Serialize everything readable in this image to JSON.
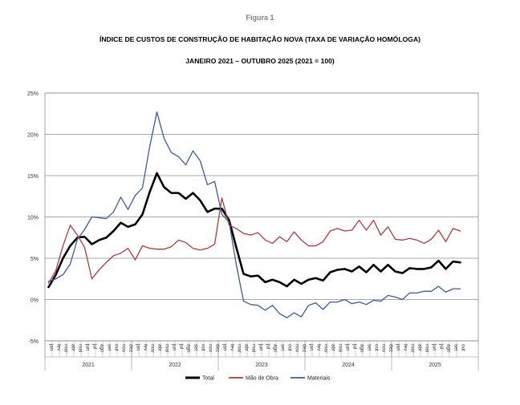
{
  "figure_label": "Figura 1",
  "chart_data": {
    "type": "line",
    "title": "ÍNDICE DE CUSTOS DE CONSTRUÇÃO DE HABITAÇÃO NOVA (TAXA DE VARIAÇÃO HOMÓLOGA)",
    "subtitle": "JANEIRO 2021 – OUTUBRO 2025 (2021 = 100)",
    "xlabel": "",
    "ylabel": "",
    "ylim": [
      -5,
      25
    ],
    "y_ticks": [
      "-5%",
      "0%",
      "5%",
      "10%",
      "15%",
      "20%",
      "25%"
    ],
    "grid": true,
    "legend_position": "bottom",
    "months": [
      "jan",
      "fev",
      "mar",
      "abr",
      "mai",
      "jun",
      "jul",
      "ago",
      "set",
      "out",
      "nov",
      "dez"
    ],
    "years": [
      "2021",
      "2022",
      "2023",
      "2024",
      "2025"
    ],
    "series": [
      {
        "name": "Total",
        "color": "#000000",
        "width": 2.6,
        "values": [
          1.5,
          3.0,
          5.0,
          6.5,
          7.5,
          7.6,
          6.7,
          7.2,
          7.5,
          8.3,
          9.3,
          8.8,
          9.1,
          10.3,
          13.0,
          15.3,
          13.6,
          12.9,
          12.9,
          12.2,
          12.9,
          12.0,
          10.6,
          11.0,
          11.0,
          9.6,
          6.3,
          3.1,
          2.8,
          2.9,
          2.1,
          2.4,
          2.1,
          1.6,
          2.4,
          1.9,
          2.4,
          2.6,
          2.3,
          3.3,
          3.6,
          3.7,
          3.4,
          4.0,
          3.3,
          4.2,
          3.4,
          4.2,
          3.4,
          3.2,
          3.8,
          3.7,
          3.7,
          3.9,
          4.7,
          3.7,
          4.6,
          4.5
        ]
      },
      {
        "name": "Mão de Obra",
        "color": "#b03a3a",
        "width": 1.3,
        "values": [
          2.0,
          3.5,
          6.5,
          9.0,
          7.8,
          6.3,
          2.5,
          3.6,
          4.5,
          5.3,
          5.6,
          6.2,
          4.8,
          6.5,
          6.2,
          6.1,
          6.1,
          6.4,
          7.2,
          6.9,
          6.2,
          6.0,
          6.2,
          6.7,
          12.3,
          9.0,
          8.6,
          8.0,
          7.8,
          8.1,
          7.2,
          6.8,
          7.6,
          7.0,
          8.2,
          7.2,
          6.5,
          6.5,
          7.0,
          8.3,
          8.6,
          8.3,
          8.4,
          9.6,
          8.4,
          9.6,
          7.8,
          8.8,
          7.3,
          7.2,
          7.4,
          7.2,
          6.8,
          7.3,
          8.4,
          7.0,
          8.6,
          8.3
        ]
      },
      {
        "name": "Materiais",
        "color": "#3b5b9a",
        "width": 1.3,
        "values": [
          2.2,
          2.5,
          3.0,
          4.3,
          7.3,
          8.5,
          10.0,
          9.9,
          9.8,
          10.6,
          12.4,
          10.9,
          12.6,
          13.5,
          18.5,
          22.7,
          19.5,
          17.8,
          17.3,
          16.3,
          18.0,
          16.8,
          13.9,
          14.3,
          10.3,
          9.4,
          4.2,
          -0.2,
          -0.6,
          -0.7,
          -1.3,
          -0.7,
          -1.7,
          -2.2,
          -1.6,
          -2.1,
          -0.7,
          -0.4,
          -1.2,
          -0.3,
          -0.3,
          0.0,
          -0.5,
          -0.3,
          -0.6,
          -0.1,
          -0.2,
          0.5,
          0.3,
          0.0,
          0.8,
          0.8,
          1.0,
          1.0,
          1.6,
          0.9,
          1.3,
          1.3
        ]
      }
    ]
  }
}
